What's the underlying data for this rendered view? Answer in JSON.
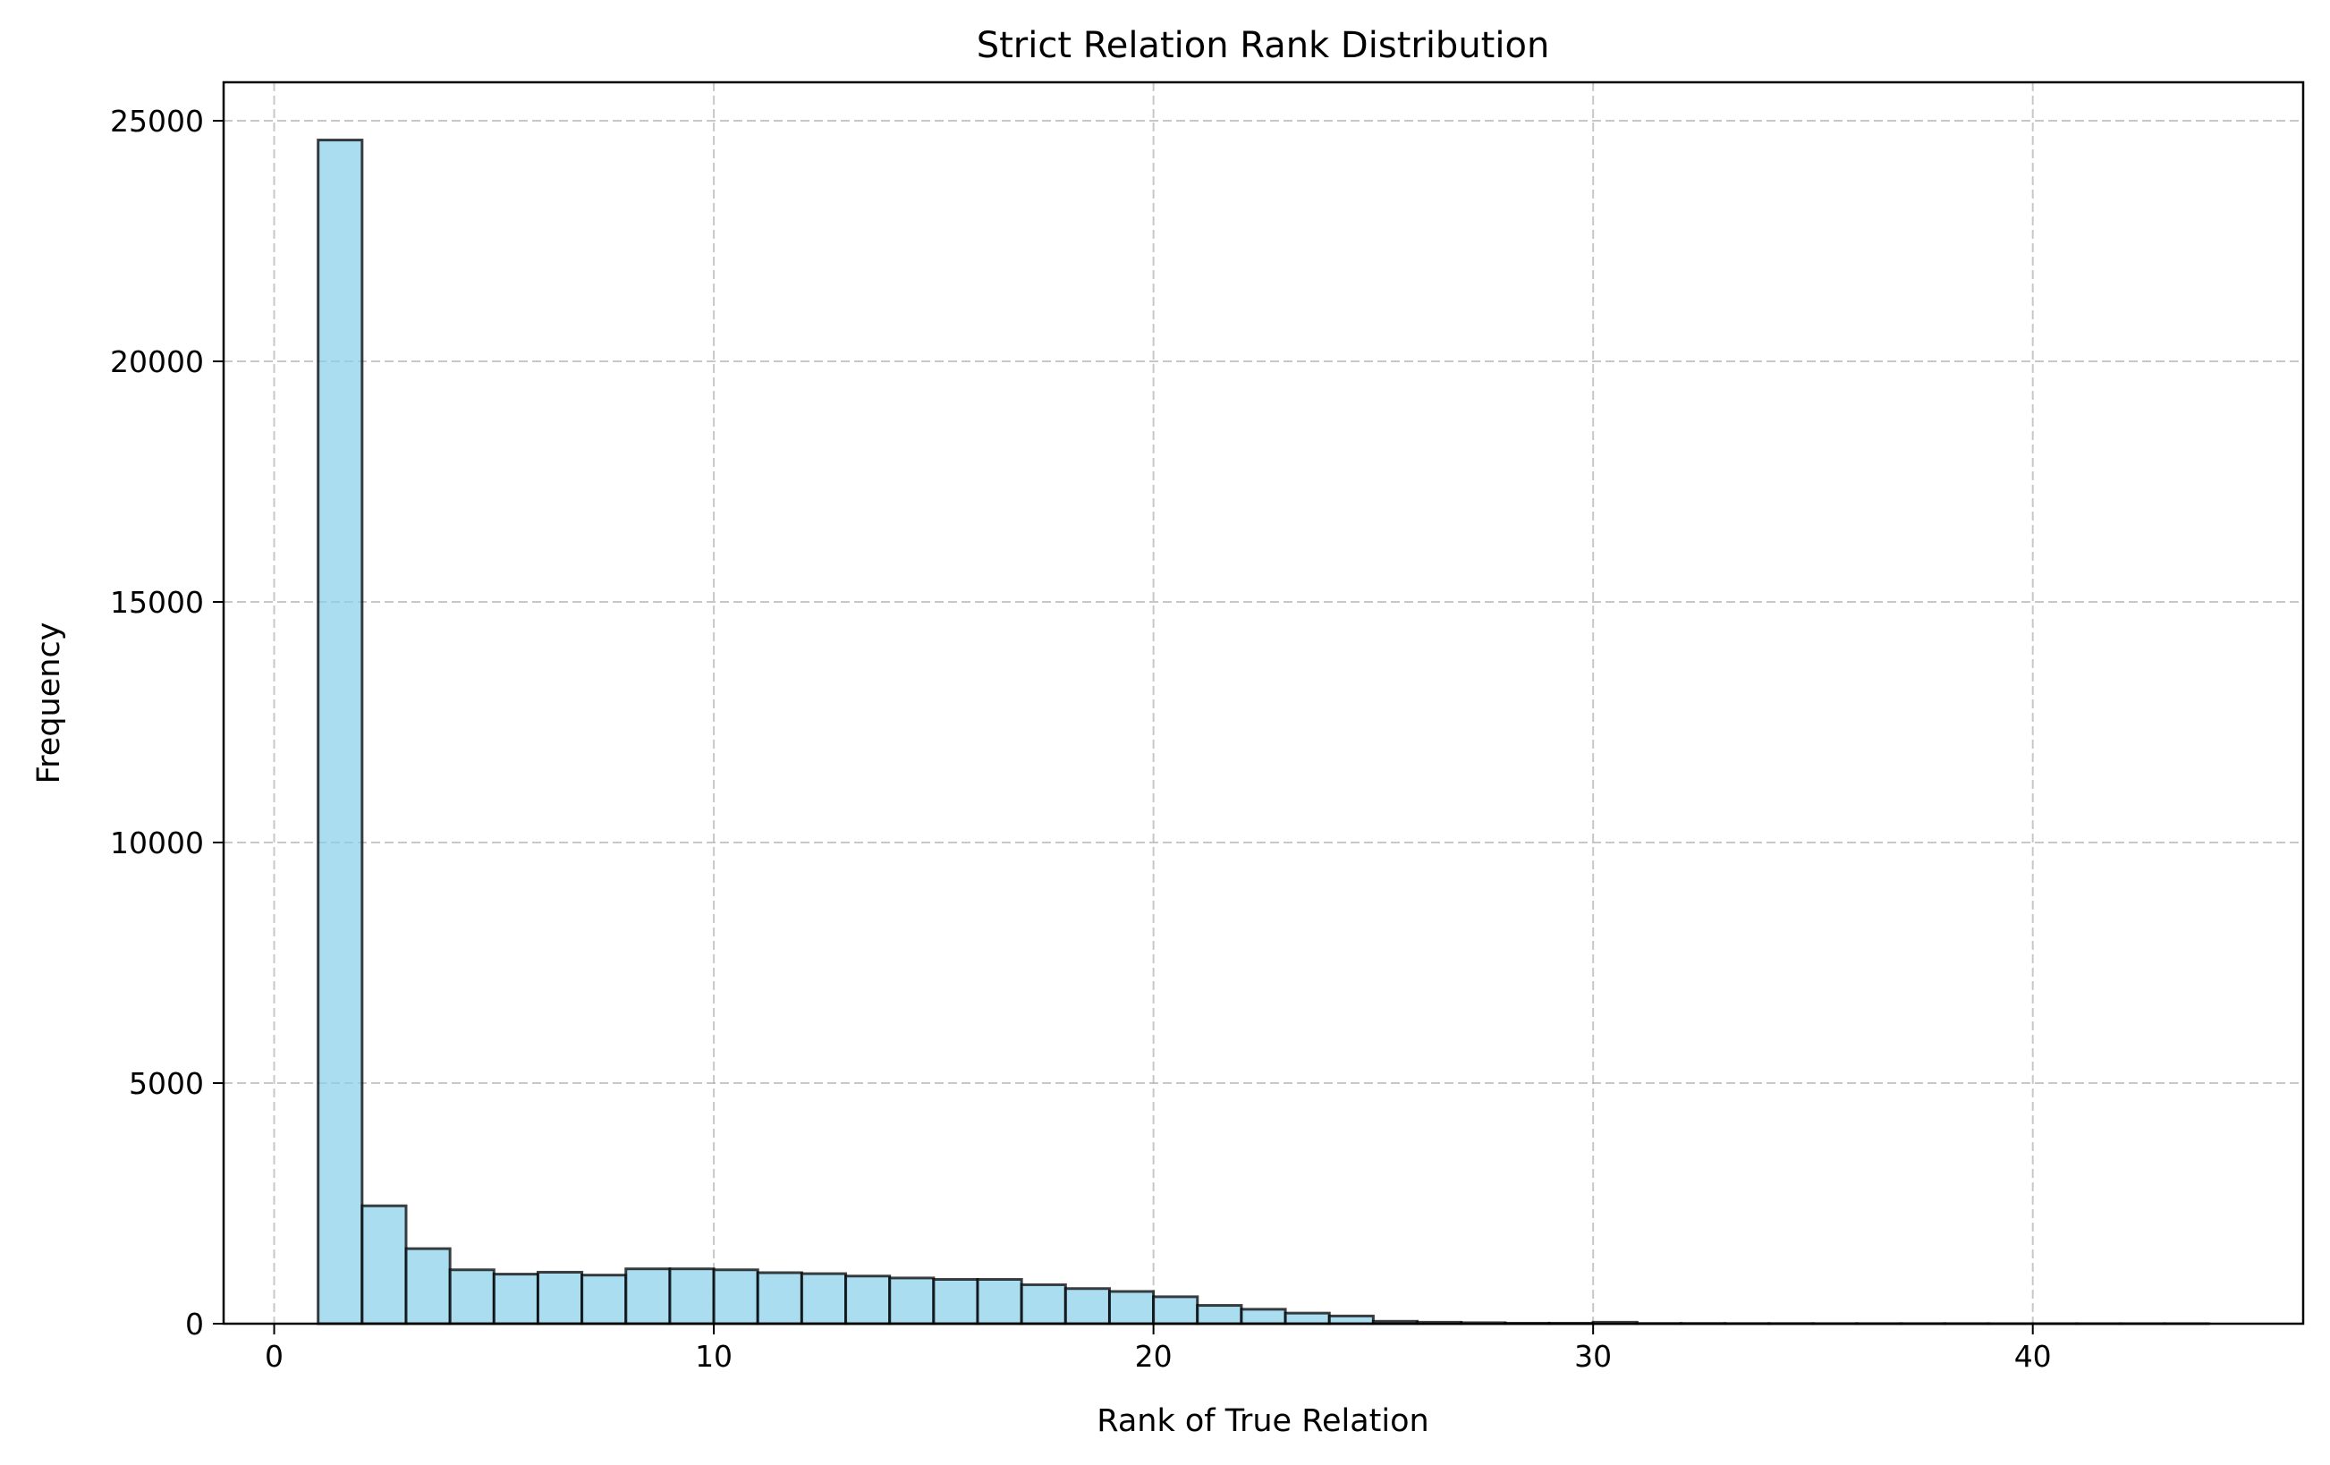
{
  "chart_data": {
    "type": "bar",
    "title": "Strict Relation Rank Distribution",
    "xlabel": "Rank of True Relation",
    "ylabel": "Frequency",
    "xlim": [
      -1.15,
      46.15
    ],
    "ylim": [
      0,
      25800
    ],
    "grid": true,
    "bar_color": "#87ceeb",
    "bar_opacity": 0.7,
    "edge_color": "#000000",
    "grid_color": "#b0b0b0",
    "xticks": [
      0,
      10,
      20,
      30,
      40
    ],
    "xtick_labels": [
      "0",
      "10",
      "20",
      "30",
      "40"
    ],
    "yticks": [
      0,
      5000,
      10000,
      15000,
      20000,
      25000
    ],
    "ytick_labels": [
      "0",
      "5000",
      "10000",
      "15000",
      "20000",
      "25000"
    ],
    "bin_edges": [
      1,
      2,
      3,
      4,
      5,
      6,
      7,
      8,
      9,
      10,
      11,
      12,
      13,
      14,
      15,
      16,
      17,
      18,
      19,
      20,
      21,
      22,
      23,
      24,
      25,
      26,
      27,
      28,
      29,
      30,
      31,
      32,
      33,
      34,
      35,
      36,
      37,
      38,
      39,
      40,
      41,
      42,
      43,
      44
    ],
    "values": [
      24600,
      2450,
      1560,
      1120,
      1030,
      1070,
      1010,
      1140,
      1140,
      1120,
      1060,
      1040,
      990,
      950,
      920,
      920,
      810,
      730,
      670,
      560,
      380,
      300,
      220,
      160,
      50,
      30,
      20,
      10,
      10,
      30,
      5,
      5,
      3,
      3,
      2,
      2,
      2,
      2,
      1,
      1,
      1,
      1,
      1
    ]
  }
}
